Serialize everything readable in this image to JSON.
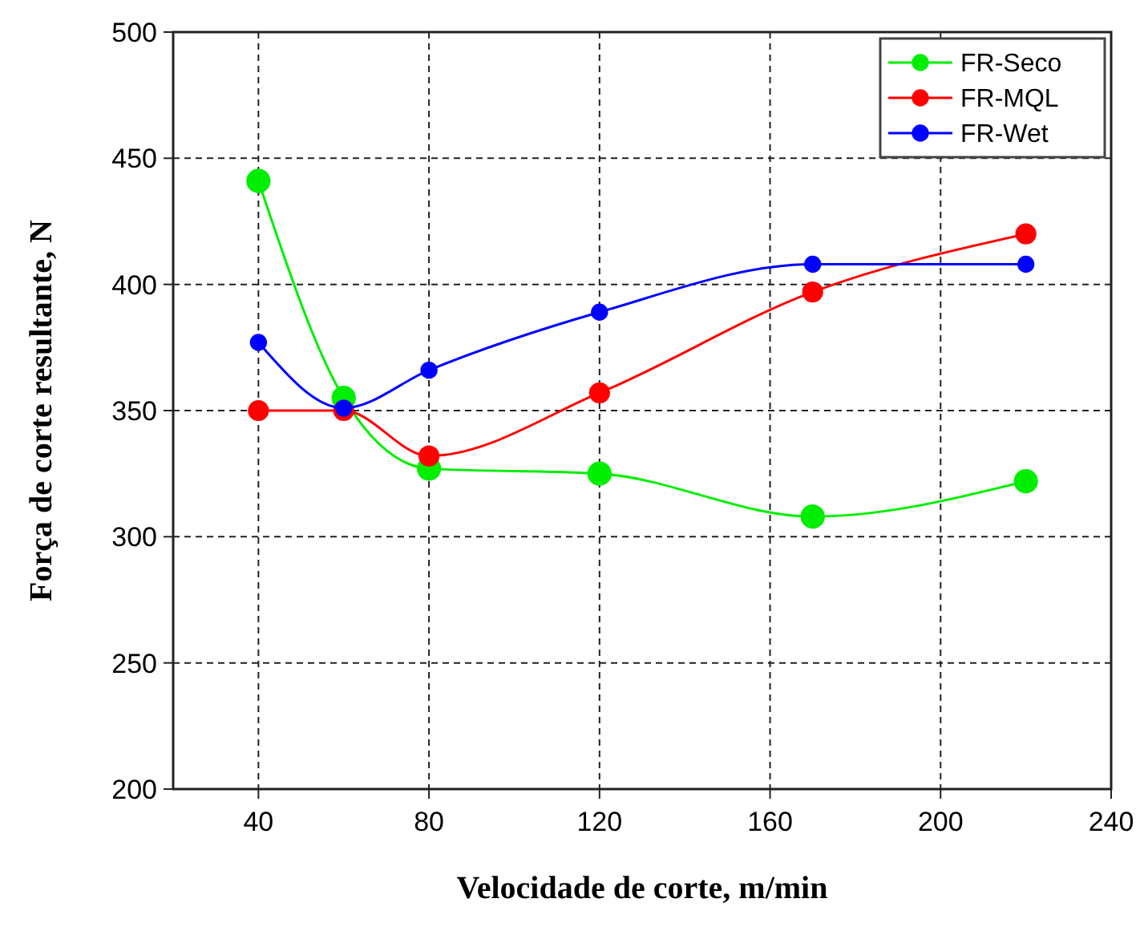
{
  "chart_data": {
    "type": "line",
    "xlabel": "Velocidade de corte, m/min",
    "ylabel": "Força de corte resultante, N",
    "x": [
      40,
      60,
      80,
      120,
      170,
      220
    ],
    "series": [
      {
        "name": "FR-Seco",
        "color": "#00ee00",
        "values": [
          441,
          355,
          327,
          325,
          308,
          322
        ]
      },
      {
        "name": "FR-MQL",
        "color": "#ff0000",
        "values": [
          350,
          350,
          332,
          357,
          397,
          420
        ]
      },
      {
        "name": "FR-Wet",
        "color": "#0000ff",
        "values": [
          377,
          351,
          366,
          389,
          408,
          408
        ]
      }
    ],
    "xlim": [
      20,
      240
    ],
    "xticks": [
      40,
      80,
      120,
      160,
      200,
      240
    ],
    "ylim": [
      200,
      500
    ],
    "yticks": [
      200,
      250,
      300,
      350,
      400,
      450,
      500
    ],
    "grid": true,
    "legend": "top right",
    "marker": "circle",
    "line_style": "solid"
  }
}
